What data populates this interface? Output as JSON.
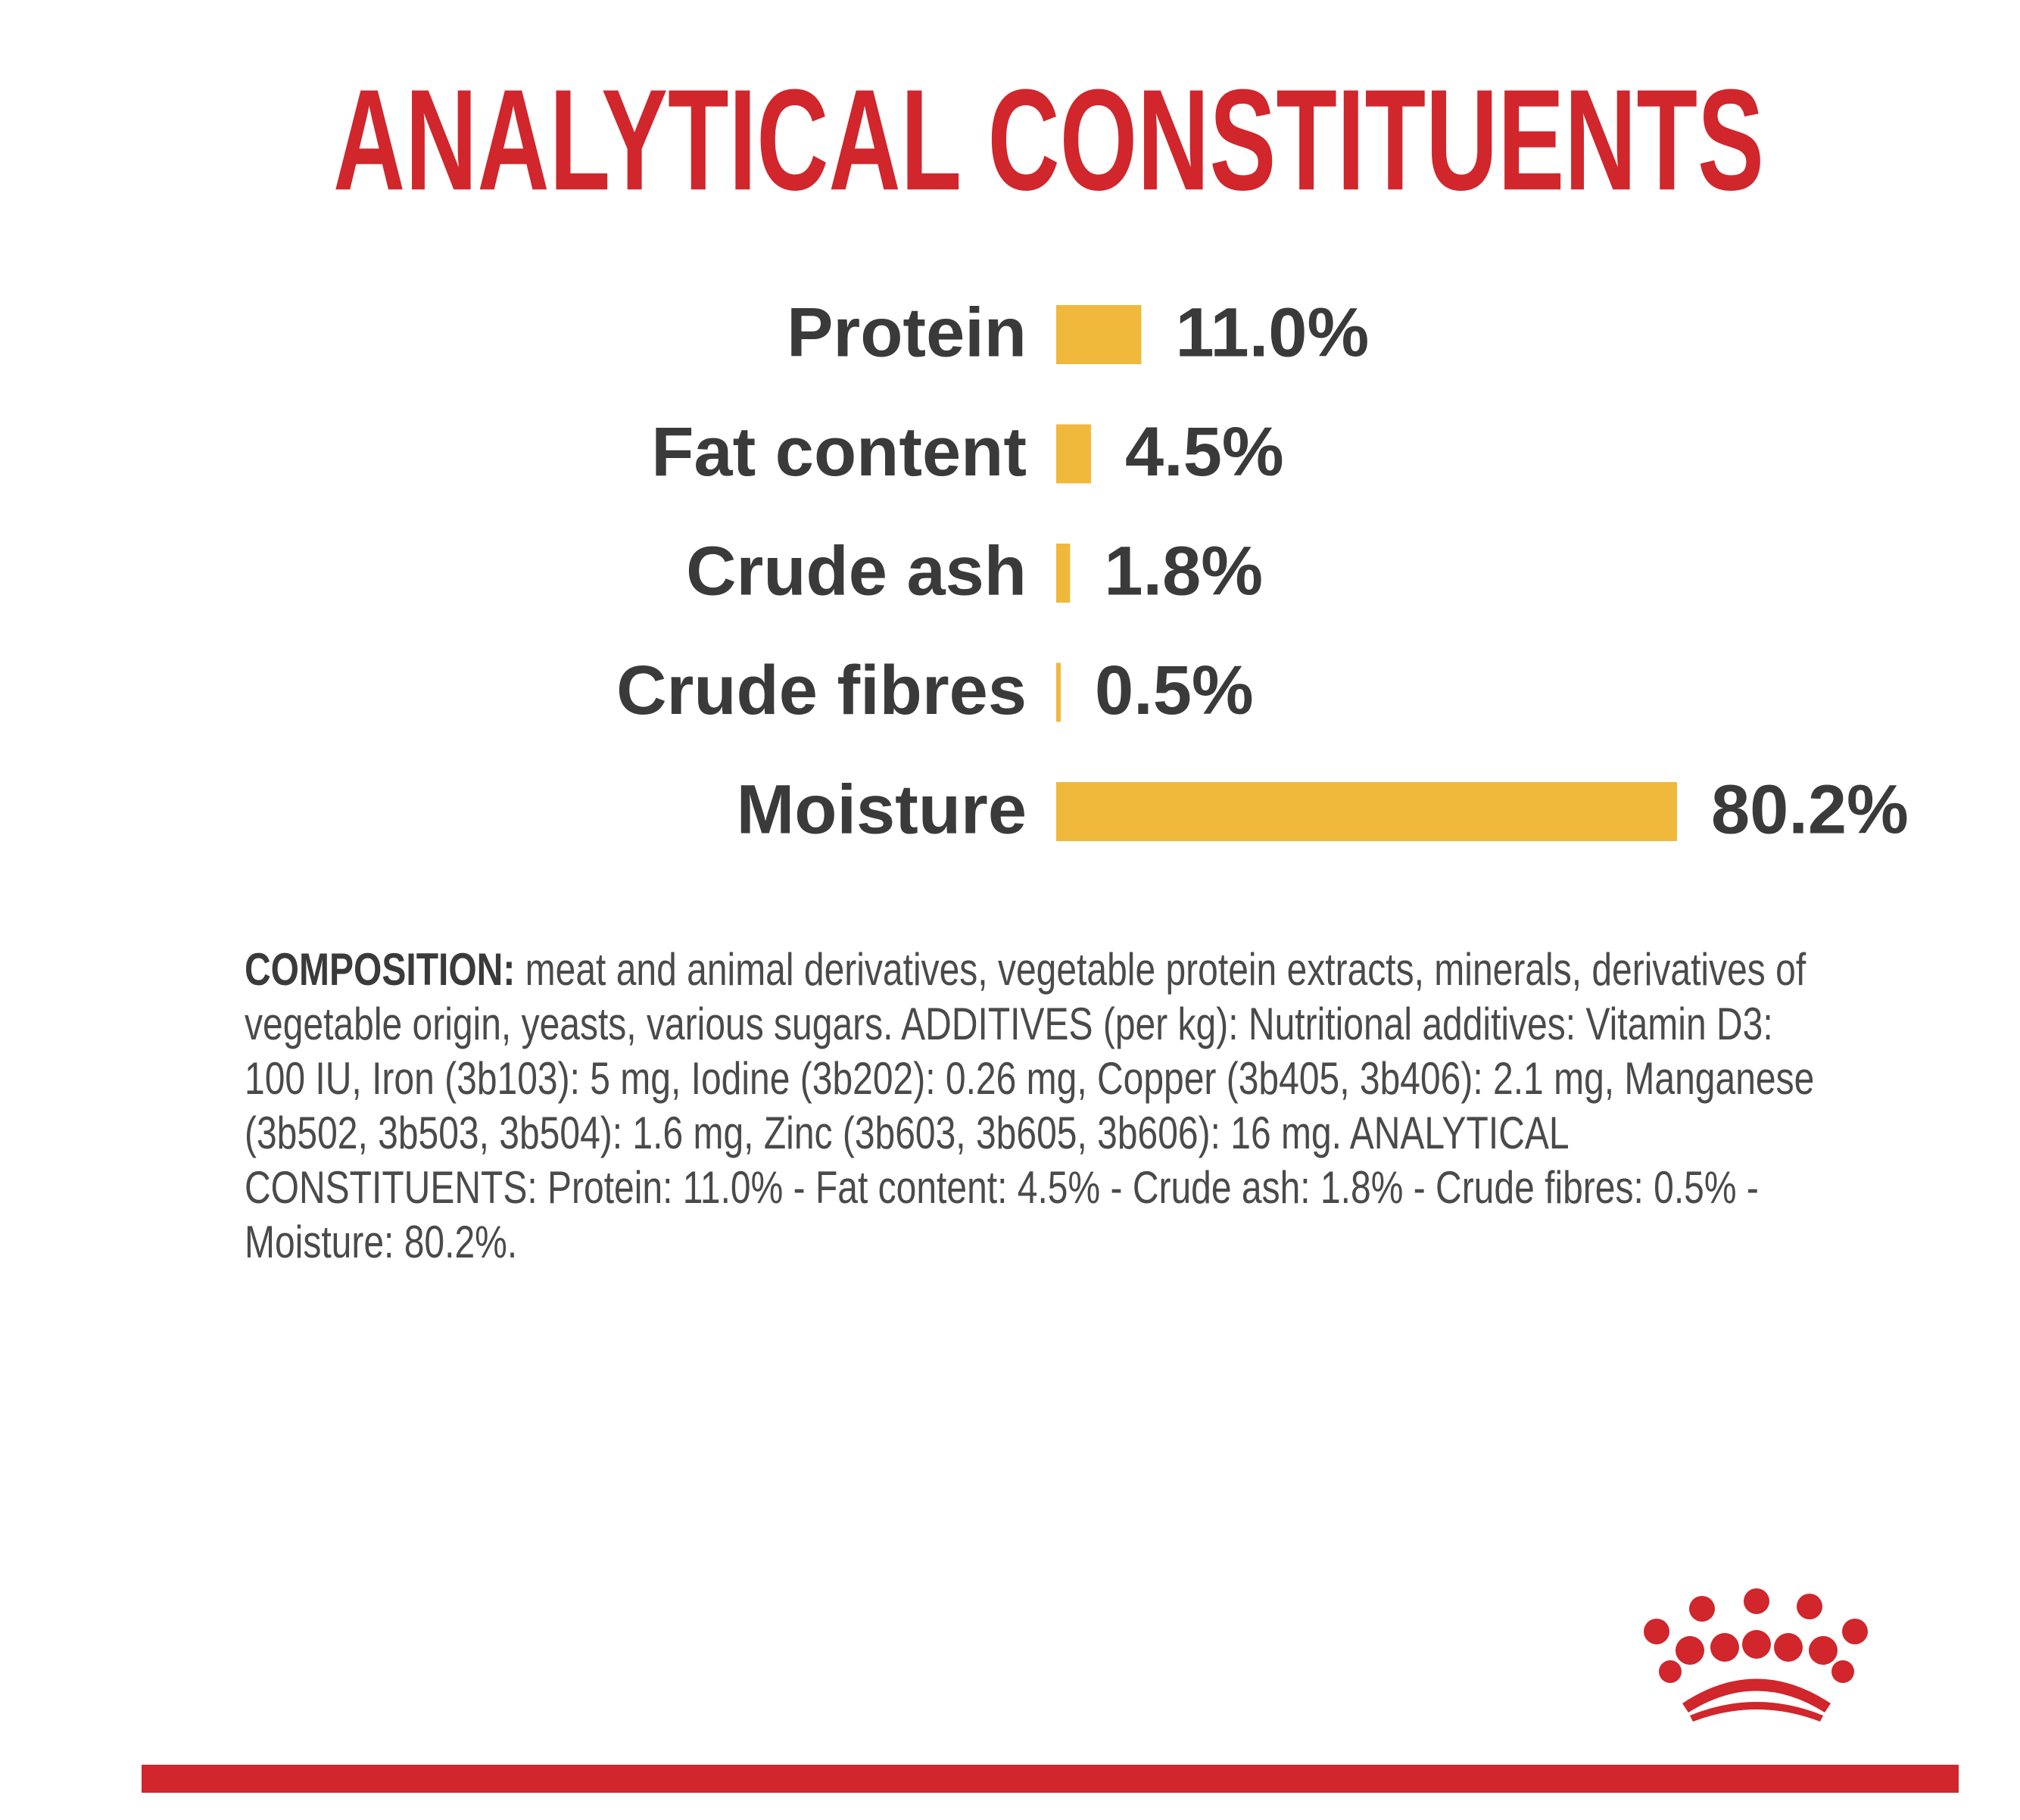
{
  "chart_data": {
    "type": "bar",
    "title": "ANALYTICAL CONSTITUENTS",
    "categories": [
      "Protein",
      "Fat content",
      "Crude ash",
      "Crude fibres",
      "Moisture"
    ],
    "values": [
      11.0,
      4.5,
      1.8,
      0.5,
      80.2
    ],
    "value_labels": [
      "11.0%",
      "4.5%",
      "1.8%",
      "0.5%",
      "80.2%"
    ],
    "color": "#f0b93b"
  },
  "composition": {
    "label": "COMPOSITION:",
    "text": "meat and animal derivatives, vegetable protein extracts, minerals, derivatives of vegetable origin, yeasts, various sugars. ADDITIVES (per kg): Nutritional additives: Vitamin D3: 100 IU, Iron (3b103): 5 mg, Iodine (3b202): 0.26 mg, Copper (3b405, 3b406): 2.1 mg, Manganese (3b502, 3b503, 3b504): 1.6 mg, Zinc (3b603, 3b605, 3b606): 16 mg. ANALYTICAL CONSTITUENTS: Protein: 11.0% - Fat content: 4.5% - Crude ash: 1.8% - Crude fibres: 0.5% - Moisture: 80.2%."
  }
}
